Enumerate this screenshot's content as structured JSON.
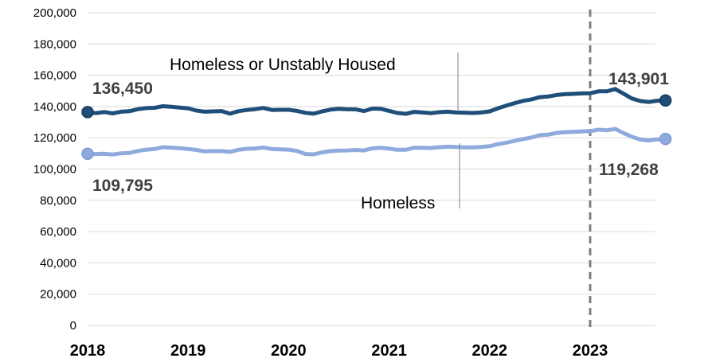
{
  "chart_data": {
    "type": "line",
    "x_start": "2018-01",
    "x_end": "2023-08",
    "ylim": [
      0,
      200000
    ],
    "y_ticks": [
      "0",
      "20,000",
      "40,000",
      "60,000",
      "80,000",
      "100,000",
      "120,000",
      "140,000",
      "160,000",
      "180,000",
      "200,000"
    ],
    "x_ticks": [
      {
        "label": "2018",
        "t": 2018.0
      },
      {
        "label": "2019",
        "t": 2019.0
      },
      {
        "label": "2020",
        "t": 2020.0
      },
      {
        "label": "2021",
        "t": 2021.0
      },
      {
        "label": "2022",
        "t": 2022.0
      },
      {
        "label": "2023",
        "t": 2023.0
      }
    ],
    "reference_line": {
      "t": 2023.0,
      "style": "dashed"
    },
    "grid": "horizontal",
    "series": [
      {
        "name": "Homeless or Unstably Housed",
        "color": "#1f4e79",
        "start_label": "136,450",
        "end_label": "143,901",
        "values": [
          136450,
          135800,
          136500,
          135600,
          136700,
          137000,
          138300,
          139000,
          139200,
          140200,
          139800,
          139300,
          138900,
          137400,
          136700,
          136900,
          137100,
          135400,
          137000,
          137800,
          138300,
          139100,
          137800,
          137900,
          137900,
          137200,
          136000,
          135400,
          136900,
          138000,
          138500,
          138200,
          138200,
          137100,
          138700,
          138600,
          137200,
          135900,
          135300,
          136600,
          136200,
          135800,
          136400,
          136700,
          136200,
          136100,
          135900,
          136200,
          136900,
          138900,
          140600,
          142200,
          143600,
          144600,
          146000,
          146400,
          147400,
          147900,
          148100,
          148400,
          148500,
          149700,
          149700,
          151200,
          148200,
          145100,
          143500,
          142900,
          143700,
          143901
        ]
      },
      {
        "name": "Homeless",
        "color": "#8faadc",
        "start_label": "109,795",
        "end_label": "119,268",
        "values": [
          109795,
          109600,
          109800,
          109300,
          110100,
          110300,
          111600,
          112400,
          112800,
          114000,
          113700,
          113400,
          112900,
          112200,
          111300,
          111500,
          111500,
          111000,
          112300,
          113000,
          113200,
          113800,
          112800,
          112600,
          112400,
          111600,
          109600,
          109400,
          110700,
          111500,
          111800,
          111900,
          112200,
          111900,
          113300,
          113600,
          113100,
          112300,
          112300,
          113700,
          113600,
          113500,
          114000,
          114300,
          114100,
          113900,
          113900,
          114100,
          114600,
          116000,
          116900,
          118000,
          119200,
          120200,
          121700,
          122000,
          123100,
          123600,
          123800,
          124100,
          124200,
          125200,
          124800,
          125700,
          123000,
          120600,
          118900,
          118300,
          119000,
          119268
        ]
      }
    ]
  }
}
